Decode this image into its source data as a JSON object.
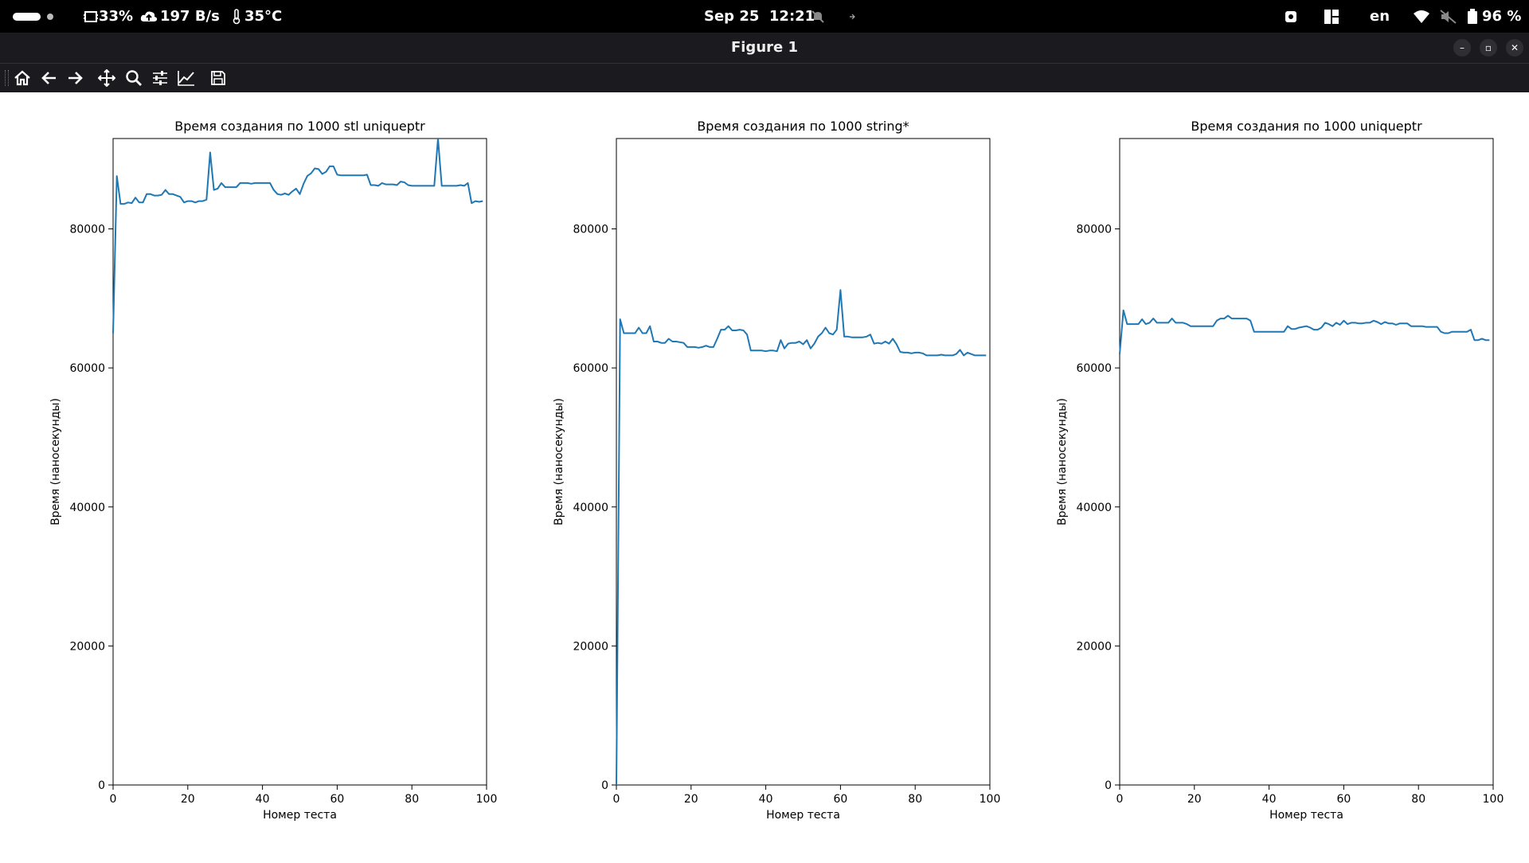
{
  "status_bar": {
    "cpu": "33%",
    "network": "197 B/s",
    "temperature": "35°C",
    "datetime": "Sep 25  12:21",
    "language": "en",
    "battery": "96 %"
  },
  "window": {
    "title": "Figure 1"
  },
  "toolbar": {
    "icons": [
      "home-icon",
      "back-icon",
      "forward-icon",
      "pan-icon",
      "zoom-icon",
      "configure-subplots-icon",
      "edit-axis-icon",
      "save-icon"
    ]
  },
  "colors": {
    "line": "#1f77b4",
    "topbar": "#000000",
    "titlebar": "#1b1b1f"
  },
  "chart_data": [
    {
      "type": "line",
      "title": "Время создания по 1000 stl uniqueptr",
      "xlabel": "Номер теста",
      "ylabel": "Время (наносекунды)",
      "xlim": [
        0,
        100
      ],
      "ylim": [
        0,
        93000
      ],
      "xticks": [
        "0",
        "20",
        "40",
        "60",
        "80",
        "100"
      ],
      "yticks": [
        "0",
        "20000",
        "40000",
        "60000",
        "80000"
      ],
      "grid": false,
      "x": [
        0,
        1,
        2,
        3,
        4,
        5,
        6,
        7,
        8,
        9,
        10,
        11,
        12,
        13,
        14,
        15,
        16,
        17,
        18,
        19,
        20,
        21,
        22,
        23,
        24,
        25,
        26,
        27,
        28,
        29,
        30,
        31,
        32,
        33,
        34,
        35,
        36,
        37,
        38,
        39,
        40,
        41,
        42,
        43,
        44,
        45,
        46,
        47,
        48,
        49,
        50,
        51,
        52,
        53,
        54,
        55,
        56,
        57,
        58,
        59,
        60,
        61,
        62,
        63,
        64,
        65,
        66,
        67,
        68,
        69,
        70,
        71,
        72,
        73,
        74,
        75,
        76,
        77,
        78,
        79,
        80,
        81,
        82,
        83,
        84,
        85,
        86,
        87,
        88,
        89,
        90,
        91,
        92,
        93,
        94,
        95,
        96,
        97,
        98,
        99
      ],
      "values": [
        65000,
        87600,
        83600,
        83600,
        83800,
        83700,
        84500,
        83800,
        83800,
        85000,
        85000,
        84800,
        84800,
        84900,
        85600,
        85000,
        85000,
        84800,
        84600,
        83800,
        84000,
        84000,
        83800,
        84000,
        84000,
        84200,
        91000,
        85600,
        85800,
        86600,
        86000,
        86000,
        86000,
        86000,
        86600,
        86600,
        86600,
        86500,
        86600,
        86600,
        86600,
        86600,
        86600,
        85600,
        85000,
        84900,
        85100,
        84900,
        85400,
        85800,
        85000,
        86500,
        87600,
        88000,
        88700,
        88600,
        87900,
        88200,
        89000,
        89000,
        87800,
        87700,
        87700,
        87700,
        87700,
        87700,
        87700,
        87700,
        87800,
        86300,
        86300,
        86200,
        86600,
        86400,
        86400,
        86400,
        86300,
        86800,
        86700,
        86300,
        86200,
        86200,
        86200,
        86200,
        86200,
        86200,
        86200,
        93000,
        86200,
        86200,
        86200,
        86200,
        86200,
        86300,
        86200,
        86600,
        83700,
        84000,
        83900,
        84000
      ]
    },
    {
      "type": "line",
      "title": "Время создания по 1000 string*",
      "xlabel": "Номер теста",
      "ylabel": "Время (наносекунды)",
      "xlim": [
        0,
        100
      ],
      "ylim": [
        0,
        93000
      ],
      "xticks": [
        "0",
        "20",
        "40",
        "60",
        "80",
        "100"
      ],
      "yticks": [
        "0",
        "20000",
        "40000",
        "60000",
        "80000"
      ],
      "grid": false,
      "x": [
        0,
        1,
        2,
        3,
        4,
        5,
        6,
        7,
        8,
        9,
        10,
        11,
        12,
        13,
        14,
        15,
        16,
        17,
        18,
        19,
        20,
        21,
        22,
        23,
        24,
        25,
        26,
        27,
        28,
        29,
        30,
        31,
        32,
        33,
        34,
        35,
        36,
        37,
        38,
        39,
        40,
        41,
        42,
        43,
        44,
        45,
        46,
        47,
        48,
        49,
        50,
        51,
        52,
        53,
        54,
        55,
        56,
        57,
        58,
        59,
        60,
        61,
        62,
        63,
        64,
        65,
        66,
        67,
        68,
        69,
        70,
        71,
        72,
        73,
        74,
        75,
        76,
        77,
        78,
        79,
        80,
        81,
        82,
        83,
        84,
        85,
        86,
        87,
        88,
        89,
        90,
        91,
        92,
        93,
        94,
        95,
        96,
        97,
        98,
        99
      ],
      "values": [
        0,
        67000,
        65000,
        65000,
        65000,
        65000,
        65800,
        65000,
        65000,
        66000,
        63800,
        63800,
        63600,
        63600,
        64200,
        63800,
        63800,
        63700,
        63600,
        63000,
        63000,
        63000,
        62900,
        63000,
        63200,
        63000,
        63000,
        64200,
        65500,
        65500,
        66000,
        65400,
        65400,
        65500,
        65400,
        64800,
        62500,
        62500,
        62500,
        62500,
        62400,
        62500,
        62500,
        62400,
        64000,
        62800,
        63500,
        63600,
        63600,
        63800,
        63400,
        64000,
        62800,
        63500,
        64500,
        65000,
        65800,
        65000,
        64800,
        65500,
        71200,
        64500,
        64500,
        64400,
        64400,
        64400,
        64400,
        64500,
        64800,
        63500,
        63600,
        63500,
        63800,
        63500,
        64200,
        63400,
        62300,
        62200,
        62200,
        62100,
        62200,
        62200,
        62100,
        61800,
        61800,
        61800,
        61800,
        61900,
        61800,
        61800,
        61800,
        62000,
        62600,
        61800,
        62200,
        62000,
        61800,
        61800,
        61800,
        61800
      ]
    },
    {
      "type": "line",
      "title": "Время создания по 1000 uniqueptr",
      "xlabel": "Номер теста",
      "ylabel": "Время (наносекунды)",
      "xlim": [
        0,
        100
      ],
      "ylim": [
        0,
        93000
      ],
      "xticks": [
        "0",
        "20",
        "40",
        "60",
        "80",
        "100"
      ],
      "yticks": [
        "0",
        "20000",
        "40000",
        "60000",
        "80000"
      ],
      "grid": false,
      "x": [
        0,
        1,
        2,
        3,
        4,
        5,
        6,
        7,
        8,
        9,
        10,
        11,
        12,
        13,
        14,
        15,
        16,
        17,
        18,
        19,
        20,
        21,
        22,
        23,
        24,
        25,
        26,
        27,
        28,
        29,
        30,
        31,
        32,
        33,
        34,
        35,
        36,
        37,
        38,
        39,
        40,
        41,
        42,
        43,
        44,
        45,
        46,
        47,
        48,
        49,
        50,
        51,
        52,
        53,
        54,
        55,
        56,
        57,
        58,
        59,
        60,
        61,
        62,
        63,
        64,
        65,
        66,
        67,
        68,
        69,
        70,
        71,
        72,
        73,
        74,
        75,
        76,
        77,
        78,
        79,
        80,
        81,
        82,
        83,
        84,
        85,
        86,
        87,
        88,
        89,
        90,
        91,
        92,
        93,
        94,
        95,
        96,
        97,
        98,
        99
      ],
      "values": [
        62000,
        68300,
        66300,
        66300,
        66300,
        66300,
        67000,
        66300,
        66500,
        67100,
        66500,
        66500,
        66500,
        66500,
        67100,
        66500,
        66500,
        66500,
        66300,
        66000,
        66000,
        66000,
        66000,
        66000,
        66000,
        66000,
        66800,
        67100,
        67100,
        67500,
        67100,
        67100,
        67100,
        67100,
        67100,
        66800,
        65200,
        65200,
        65200,
        65200,
        65200,
        65200,
        65200,
        65200,
        65200,
        66000,
        65600,
        65600,
        65800,
        65900,
        66000,
        65800,
        65500,
        65500,
        65800,
        66500,
        66300,
        66000,
        66500,
        66200,
        66800,
        66300,
        66500,
        66500,
        66400,
        66400,
        66500,
        66500,
        66800,
        66600,
        66300,
        66600,
        66400,
        66400,
        66200,
        66400,
        66400,
        66400,
        66000,
        66000,
        66000,
        66000,
        65900,
        65900,
        65900,
        65900,
        65200,
        65000,
        65000,
        65200,
        65200,
        65200,
        65200,
        65200,
        65500,
        64000,
        64000,
        64200,
        64000,
        64000
      ]
    }
  ]
}
